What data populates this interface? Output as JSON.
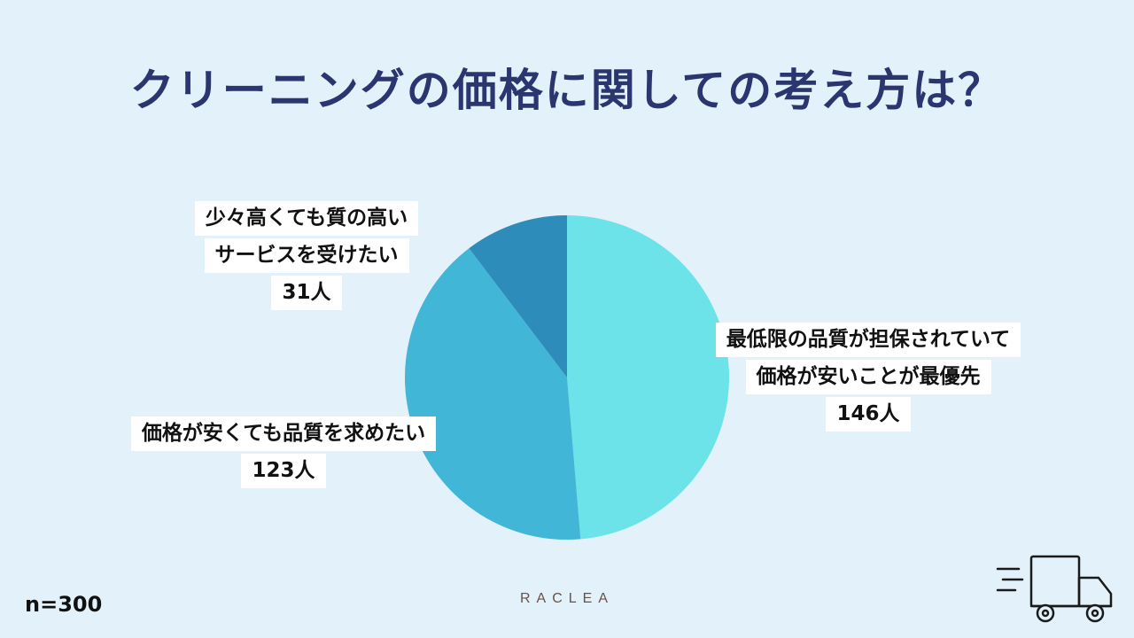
{
  "title": "クリーニングの価格に関しての考え方は？",
  "sample_size": "n=300",
  "brand": "RACLEA",
  "icons": {
    "truck": "delivery-truck-icon"
  },
  "colors": {
    "background": "#e3f1fb",
    "title": "#2b3670"
  },
  "chart_data": {
    "type": "pie",
    "title": "クリーニングの価格に関しての考え方は？",
    "start_angle": "top",
    "direction": "clockwise",
    "slices": [
      {
        "label_lines": [
          "最低限の品質が担保されていて",
          "価格が安いことが最優先"
        ],
        "value": 146,
        "value_label": "146人",
        "color": "#6be3e8"
      },
      {
        "label_lines": [
          "価格が安くても品質を求めたい"
        ],
        "value": 123,
        "value_label": "123人",
        "color": "#42b6d6"
      },
      {
        "label_lines": [
          "少々高くても質の高い",
          "サービスを受けたい"
        ],
        "value": 31,
        "value_label": "31人",
        "color": "#2d8cba"
      }
    ]
  }
}
